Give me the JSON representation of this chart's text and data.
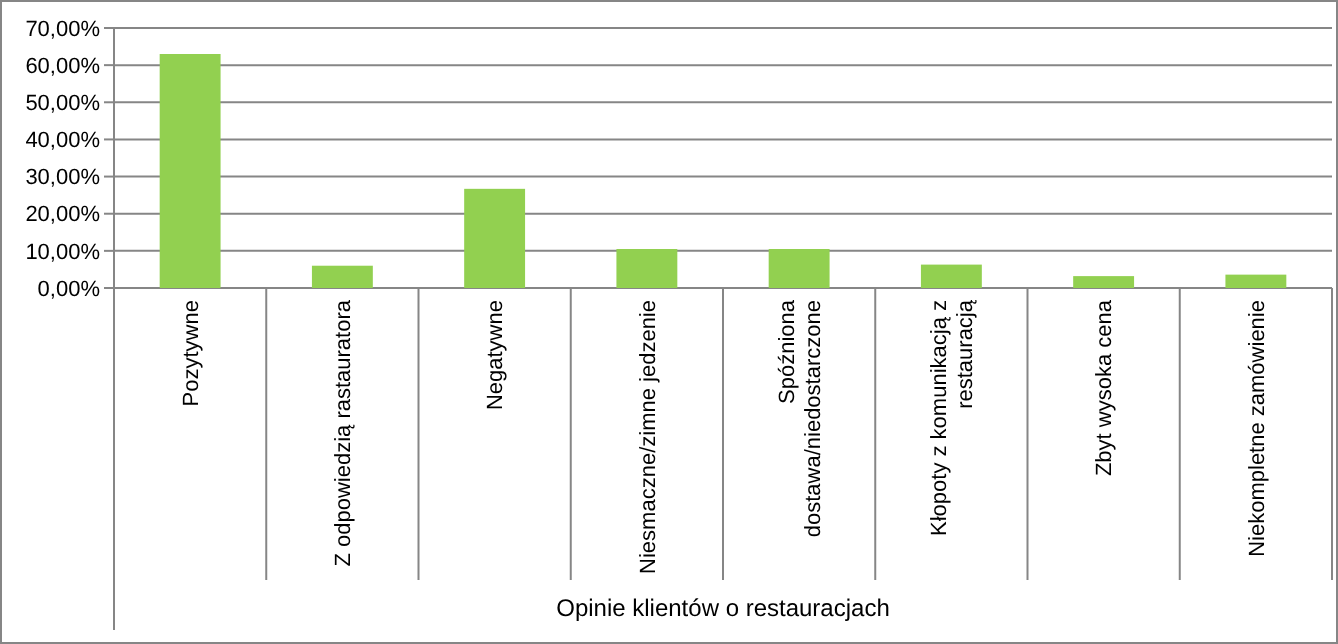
{
  "chart_data": {
    "type": "bar",
    "xlabel": "Opinie klientów o restauracjach",
    "categories": [
      "Pozytywne",
      "Z odpowiedzią rastauratora",
      "Negatywne",
      "Niesmaczne/zimne jedzenie",
      "Spóźniona dostawa/niedostarczone",
      "Kłopoty z komunikacją z restauracją",
      "Zbyt wysoka cena",
      "Niekompletne zamówienie"
    ],
    "values": [
      63.0,
      6.0,
      26.7,
      10.5,
      10.5,
      6.3,
      3.2,
      3.6
    ],
    "color": "#92d050",
    "ylim": [
      0,
      70
    ],
    "yticks": [
      {
        "value": 0,
        "label": "0,00%"
      },
      {
        "value": 10,
        "label": "10,00%"
      },
      {
        "value": 20,
        "label": "20,00%"
      },
      {
        "value": 30,
        "label": "30,00%"
      },
      {
        "value": 40,
        "label": "40,00%"
      },
      {
        "value": 50,
        "label": "50,00%"
      },
      {
        "value": 60,
        "label": "60,00%"
      },
      {
        "value": 70,
        "label": "70,00%"
      }
    ],
    "grid": "y"
  }
}
